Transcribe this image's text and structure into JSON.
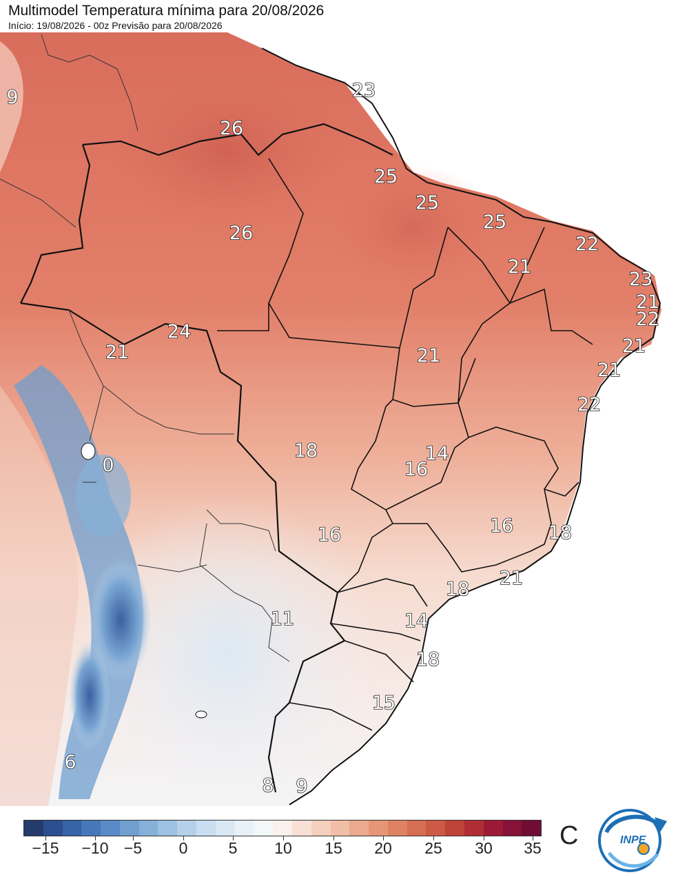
{
  "header": {
    "title": "Multimodel Temperatura mínima para 20/08/2026",
    "subtitle": "Início: 19/08/2026 - 00z  Previsão para 20/08/2026"
  },
  "map": {
    "labels": [
      {
        "text": "9"
      },
      {
        "text": "23"
      },
      {
        "text": "26"
      },
      {
        "text": "25"
      },
      {
        "text": "25"
      },
      {
        "text": "25"
      },
      {
        "text": "26"
      },
      {
        "text": "22"
      },
      {
        "text": "21"
      },
      {
        "text": "23"
      },
      {
        "text": "21"
      },
      {
        "text": "22"
      },
      {
        "text": "24"
      },
      {
        "text": "21"
      },
      {
        "text": "21"
      },
      {
        "text": "21"
      },
      {
        "text": "21"
      },
      {
        "text": "22"
      },
      {
        "text": "18"
      },
      {
        "text": "14"
      },
      {
        "text": "16"
      },
      {
        "text": "0"
      },
      {
        "text": "16"
      },
      {
        "text": "16"
      },
      {
        "text": "18"
      },
      {
        "text": "21"
      },
      {
        "text": "18"
      },
      {
        "text": "11"
      },
      {
        "text": "14"
      },
      {
        "text": "18"
      },
      {
        "text": "15"
      },
      {
        "text": "6"
      },
      {
        "text": "8"
      },
      {
        "text": "9"
      }
    ]
  },
  "colorbar": {
    "ticks": [
      "−15",
      "−10",
      "−5",
      "0",
      "5",
      "10",
      "15",
      "20",
      "25",
      "30",
      "35"
    ],
    "unit": "C",
    "colors": [
      "#253b6e",
      "#2d4f8f",
      "#3763a7",
      "#4677b9",
      "#5a8bc6",
      "#6f9ecf",
      "#86b0d8",
      "#9dc1e1",
      "#b4d1e9",
      "#c9def0",
      "#dae8f4",
      "#e8f1f8",
      "#f4f7fa",
      "#fbf0eb",
      "#f8e0d4",
      "#f4cfbd",
      "#f0bea6",
      "#eba98e",
      "#e59677",
      "#de8263",
      "#d66e53",
      "#cc5a46",
      "#be4339",
      "#b02d35",
      "#9c1a36",
      "#861238",
      "#6f0d35"
    ]
  },
  "logo": {
    "text": "INPE"
  }
}
